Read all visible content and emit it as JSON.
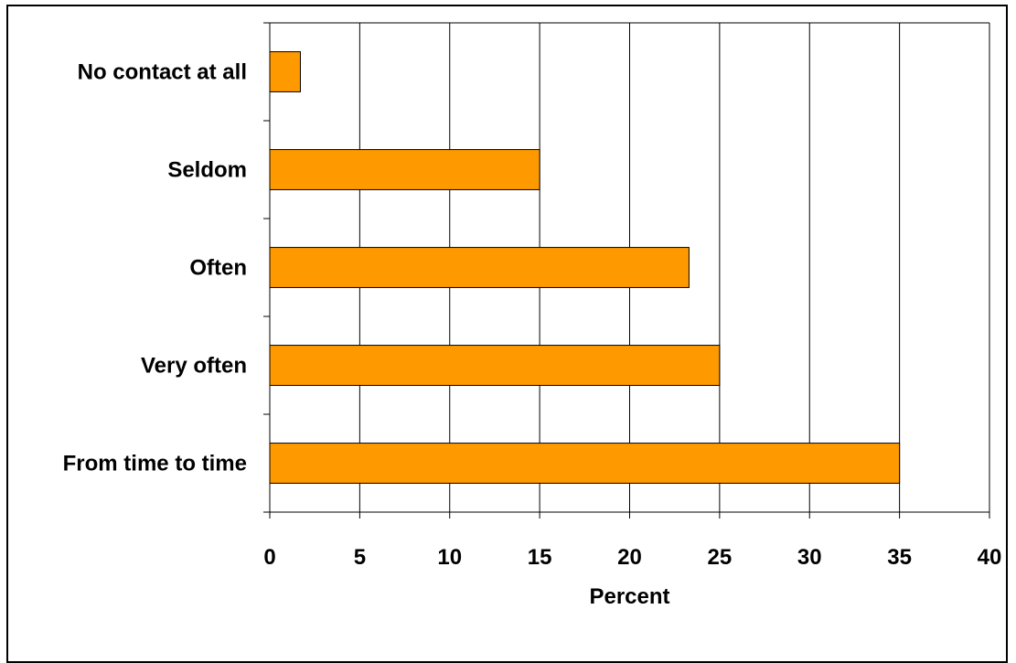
{
  "chart_data": {
    "type": "bar",
    "orientation": "horizontal",
    "categories": [
      "No contact at all",
      "Seldom",
      "Often",
      "Very often",
      "From time to time"
    ],
    "values": [
      1.7,
      15,
      23.3,
      25,
      35
    ],
    "xlabel": "Percent",
    "ylabel": "",
    "xlim": [
      0,
      40
    ],
    "xticks": [
      "0",
      "5",
      "10",
      "15",
      "20",
      "25",
      "30",
      "35",
      "40"
    ],
    "grid": "vertical",
    "legend": "none",
    "colors": {
      "bar_fill": "#FF9900",
      "bar_stroke": "#000000",
      "grid": "#000000",
      "axis": "#000000"
    }
  }
}
